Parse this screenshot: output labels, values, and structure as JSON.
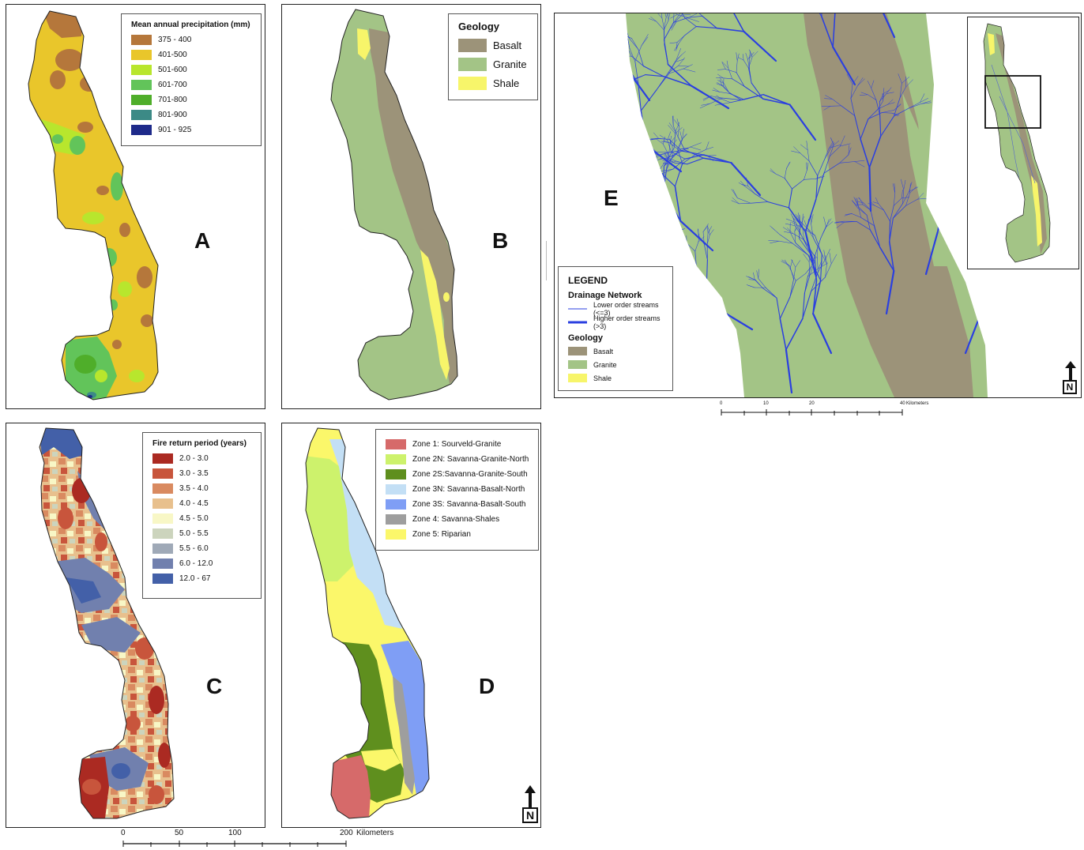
{
  "panels": {
    "a": {
      "label": "A",
      "legend": {
        "title": "Mean annual precipitation (mm)",
        "items": [
          {
            "label": "375 - 400",
            "color": "#b5773b"
          },
          {
            "label": "401-500",
            "color": "#e9c62b"
          },
          {
            "label": "501-600",
            "color": "#b8e62d"
          },
          {
            "label": "601-700",
            "color": "#62c45a"
          },
          {
            "label": "701-800",
            "color": "#4fae2a"
          },
          {
            "label": "801-900",
            "color": "#3c8a86"
          },
          {
            "label": "901 - 925",
            "color": "#1e2a8a"
          }
        ]
      }
    },
    "b": {
      "label": "B",
      "legend": {
        "title": "Geology",
        "items": [
          {
            "label": "Basalt",
            "color": "#9c9379"
          },
          {
            "label": "Granite",
            "color": "#a3c486"
          },
          {
            "label": "Shale",
            "color": "#f7f56a"
          }
        ]
      }
    },
    "c": {
      "label": "C",
      "legend": {
        "title": "Fire return period (years)",
        "items": [
          {
            "label": "2.0 - 3.0",
            "color": "#ab2a22"
          },
          {
            "label": "3.0 - 3.5",
            "color": "#c8553c"
          },
          {
            "label": "3.5 - 4.0",
            "color": "#d98a60"
          },
          {
            "label": "4.0 - 4.5",
            "color": "#e8c08d"
          },
          {
            "label": "4.5 - 5.0",
            "color": "#f8f7c6"
          },
          {
            "label": "5.0 - 5.5",
            "color": "#ccd4bd"
          },
          {
            "label": "5.5 - 6.0",
            "color": "#9fa9b7"
          },
          {
            "label": "6.0 - 12.0",
            "color": "#7180ae"
          },
          {
            "label": "12.0 - 67",
            "color": "#4360a8"
          }
        ]
      }
    },
    "d": {
      "label": "D",
      "legend": {
        "items": [
          {
            "label": "Zone 1: Sourveld-Granite",
            "color": "#d66a6a"
          },
          {
            "label": "Zone 2N: Savanna-Granite-North",
            "color": "#cdf26c"
          },
          {
            "label": "Zone 2S:Savanna-Granite-South",
            "color": "#5f8f1e"
          },
          {
            "label": "Zone 3N: Savanna-Basalt-North",
            "color": "#c3dff5"
          },
          {
            "label": "Zone 3S: Savanna-Basalt-South",
            "color": "#7f9ef5"
          },
          {
            "label": "Zone 4: Savanna-Shales",
            "color": "#9e9e9e"
          },
          {
            "label": "Zone 5: Riparian",
            "color": "#fbf76a"
          }
        ]
      },
      "north": "N"
    },
    "e": {
      "label": "E",
      "legend": {
        "title": "LEGEND",
        "drainage_title": "Drainage Network",
        "lower": "Lower order streams (<=3)",
        "higher": "Higher order streams (>3)",
        "geology_title": "Geology",
        "geology": [
          {
            "label": "Basalt",
            "color": "#9c9379"
          },
          {
            "label": "Granite",
            "color": "#a3c486"
          },
          {
            "label": "Shale",
            "color": "#f7f56a"
          }
        ]
      },
      "stream_color": "#2a3fe0",
      "north": "N",
      "scale": {
        "ticks": [
          "0",
          "10",
          "20",
          "40"
        ],
        "unit": "Kilometers"
      }
    }
  },
  "scale_main": {
    "ticks": [
      "0",
      "50",
      "100",
      "200"
    ],
    "unit": "Kilometers"
  }
}
